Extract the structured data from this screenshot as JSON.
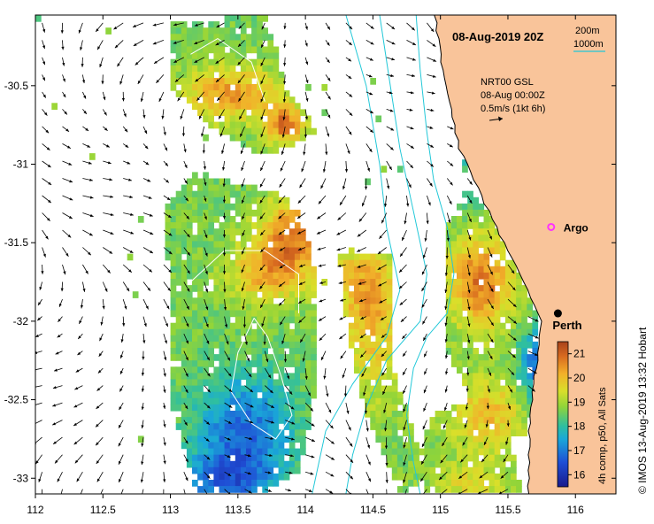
{
  "map": {
    "title": "08-Aug-2019 20Z",
    "depth_legend": {
      "shallow": "200m",
      "deep": "1000m"
    },
    "current_legend": {
      "line1": "NRT00 GSL",
      "line2": "08-Aug 00:00Z",
      "line3": "0.5m/s (1kt 6h)"
    },
    "places": [
      {
        "name": "Argo",
        "lon": 115.82,
        "lat": -31.4,
        "marker": "magenta-circle"
      },
      {
        "name": "Perth",
        "lon": 115.87,
        "lat": -31.95,
        "marker": "black-dot"
      }
    ],
    "credit": "© IMOS 13-Aug-2019 13:32 Hobart",
    "colorbar": {
      "label": "4h comp, p50, All Sats",
      "min": 15.5,
      "max": 21.5,
      "ticks": [
        "16",
        "17",
        "18",
        "19",
        "20",
        "21"
      ]
    },
    "lon_ticks": [
      "112",
      "112.5",
      "113",
      "113.5",
      "114",
      "114.5",
      "115",
      "115.5",
      "116"
    ],
    "lat_ticks": [
      "-30.5",
      "-31",
      "-31.5",
      "-32",
      "-32.5",
      "-33"
    ],
    "lon_range": [
      112,
      116.3
    ],
    "lat_range": [
      -33.1,
      -30.05
    ],
    "colors": {
      "land": "#f9c49a",
      "depth_contour": "#22c8d8",
      "frame": "#000000"
    }
  }
}
